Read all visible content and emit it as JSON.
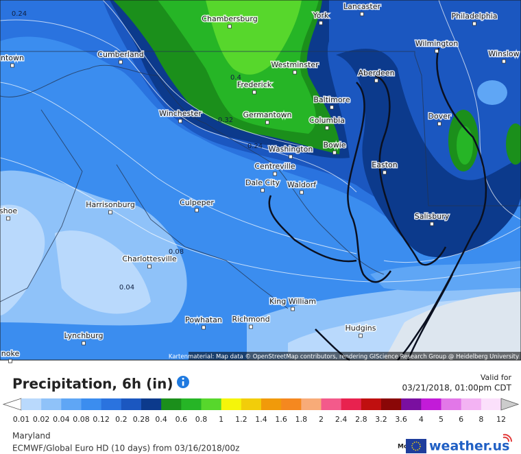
{
  "map": {
    "cities": [
      "Chambersburg",
      "York",
      "Lancaster",
      "Philadelphia",
      "Cumberland",
      "ntown",
      "Wilmington",
      "Winslow",
      "Westminster",
      "Aberdeen",
      "Frederick",
      "Baltimore",
      "Winchester",
      "Germantown",
      "Columbia",
      "Dover",
      "Washington",
      "Bowie",
      "Easton",
      "Centreville",
      "Dale City",
      "Waldorf",
      "Harrisonburg",
      "Culpeper",
      "Salisbury",
      "shoe",
      "Charlottesville",
      "King William",
      "Powhatan",
      "Richmond",
      "Hudgins",
      "Lynchburg",
      "noke"
    ],
    "contour_labels": [
      "0.24",
      "0.4",
      "0.32",
      "0.24",
      "0.08",
      "0.04"
    ],
    "attribution": "Kartenmaterial: Map data © OpenStreetMap contributors, rendering GIScience Research Group @ Heidelberg University"
  },
  "legend": {
    "title": "Precipitation, 6h (in)",
    "valid_label": "Valid for",
    "valid_time": "03/21/2018, 01:00pm CDT",
    "colorbar": {
      "labels": [
        "0.01",
        "0.02",
        "0.04",
        "0.08",
        "0.12",
        "0.2",
        "0.28",
        "0.4",
        "0.6",
        "0.8",
        "1",
        "1.2",
        "1.4",
        "1.6",
        "1.8",
        "2",
        "2.4",
        "2.8",
        "3.2",
        "3.6",
        "4",
        "5",
        "6",
        "8",
        "12"
      ],
      "colors": [
        "#ffffff",
        "#b9d9fc",
        "#8fc2f9",
        "#5fa6f5",
        "#3b8def",
        "#2a73df",
        "#1b57c0",
        "#0c3a8c",
        "#1b8f1b",
        "#26b526",
        "#57d72c",
        "#f5f50a",
        "#f2cd0a",
        "#f19a0a",
        "#f5881f",
        "#f8ab78",
        "#f35a8b",
        "#e8224f",
        "#c00f0f",
        "#8a0707",
        "#7a0fa0",
        "#c21bd8",
        "#e277e8",
        "#f3b3f3",
        "#fbe0fb",
        "#cccccc"
      ]
    }
  },
  "footer": {
    "region": "Maryland",
    "model_run": "ECMWF/Global Euro HD (10 days) from 03/16/2018/00z",
    "model_label": "Model:",
    "logo": "weather.us"
  }
}
